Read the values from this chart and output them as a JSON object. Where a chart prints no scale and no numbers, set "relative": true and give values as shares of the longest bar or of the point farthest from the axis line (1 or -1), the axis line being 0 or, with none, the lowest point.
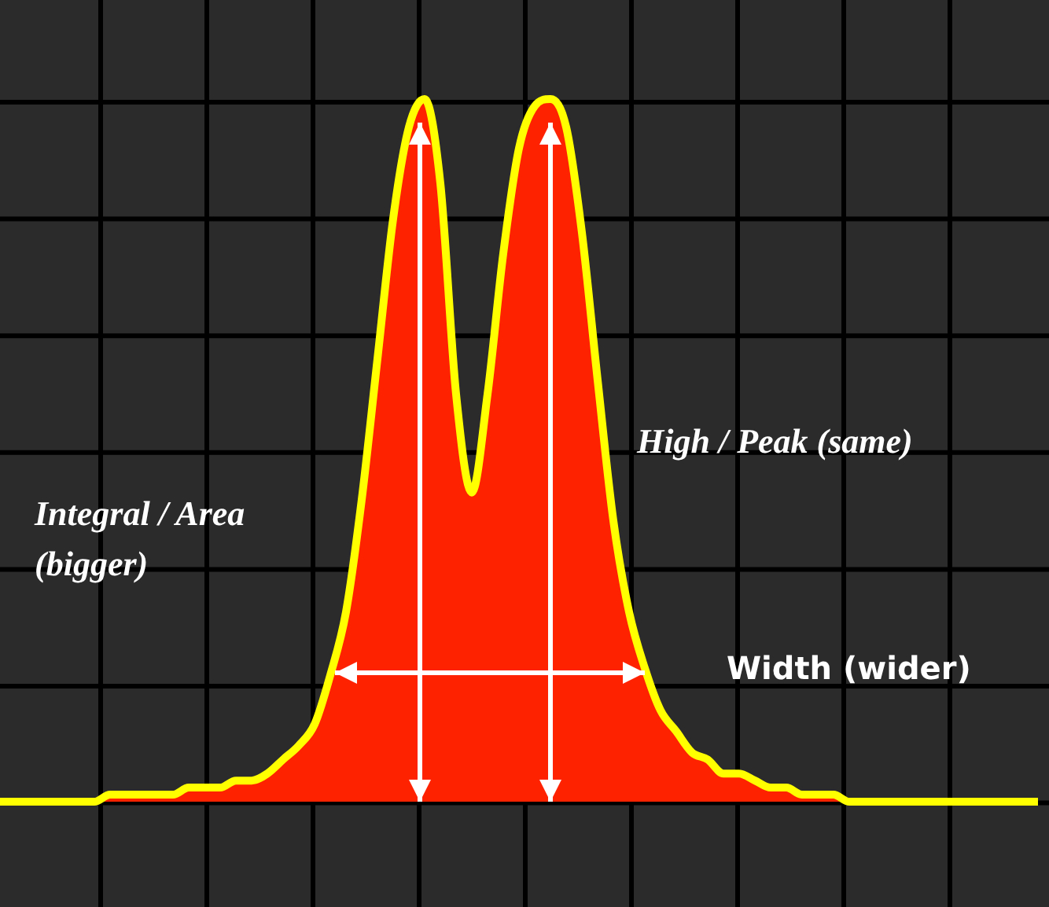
{
  "chart_data": {
    "type": "area",
    "relative": true,
    "grid": true,
    "categories": [
      null,
      null,
      null,
      null,
      null,
      null,
      null,
      null,
      null,
      null,
      null,
      null,
      null,
      null,
      null,
      null,
      null,
      null,
      null,
      null,
      null,
      null,
      null,
      null,
      null,
      null,
      null,
      null,
      null,
      null,
      null,
      null,
      null,
      null,
      null,
      null,
      null,
      null,
      null,
      null,
      null,
      null,
      null,
      null,
      null,
      null,
      null,
      null,
      null,
      null,
      null,
      null,
      null,
      null,
      null,
      null,
      null,
      null,
      null,
      null,
      null,
      null,
      null,
      null,
      null,
      null,
      null
    ],
    "series": [
      {
        "color": "#ff2200",
        "values": [
          0,
          0,
          0,
          0,
          0,
          0,
          0,
          0.01,
          0.01,
          0.01,
          0.01,
          0.01,
          0.02,
          0.02,
          0.02,
          0.03,
          0.03,
          0.04,
          0.06,
          0.08,
          0.11,
          0.18,
          0.27,
          0.43,
          0.63,
          0.83,
          0.96,
          1,
          0.88,
          0.58,
          0.44,
          0.58,
          0.78,
          0.93,
          0.99,
          1,
          0.96,
          0.81,
          0.6,
          0.4,
          0.27,
          0.19,
          0.13,
          0.1,
          0.07,
          0.06,
          0.04,
          0.04,
          0.03,
          0.02,
          0.02,
          0.01,
          0.01,
          0.01,
          0,
          0,
          0,
          0,
          0,
          0,
          0,
          0,
          0,
          0,
          0,
          0,
          0
        ]
      }
    ],
    "annotations": [
      "High / Peak (same)",
      "Integral / Area (bigger)",
      "Width (wider)"
    ]
  }
}
